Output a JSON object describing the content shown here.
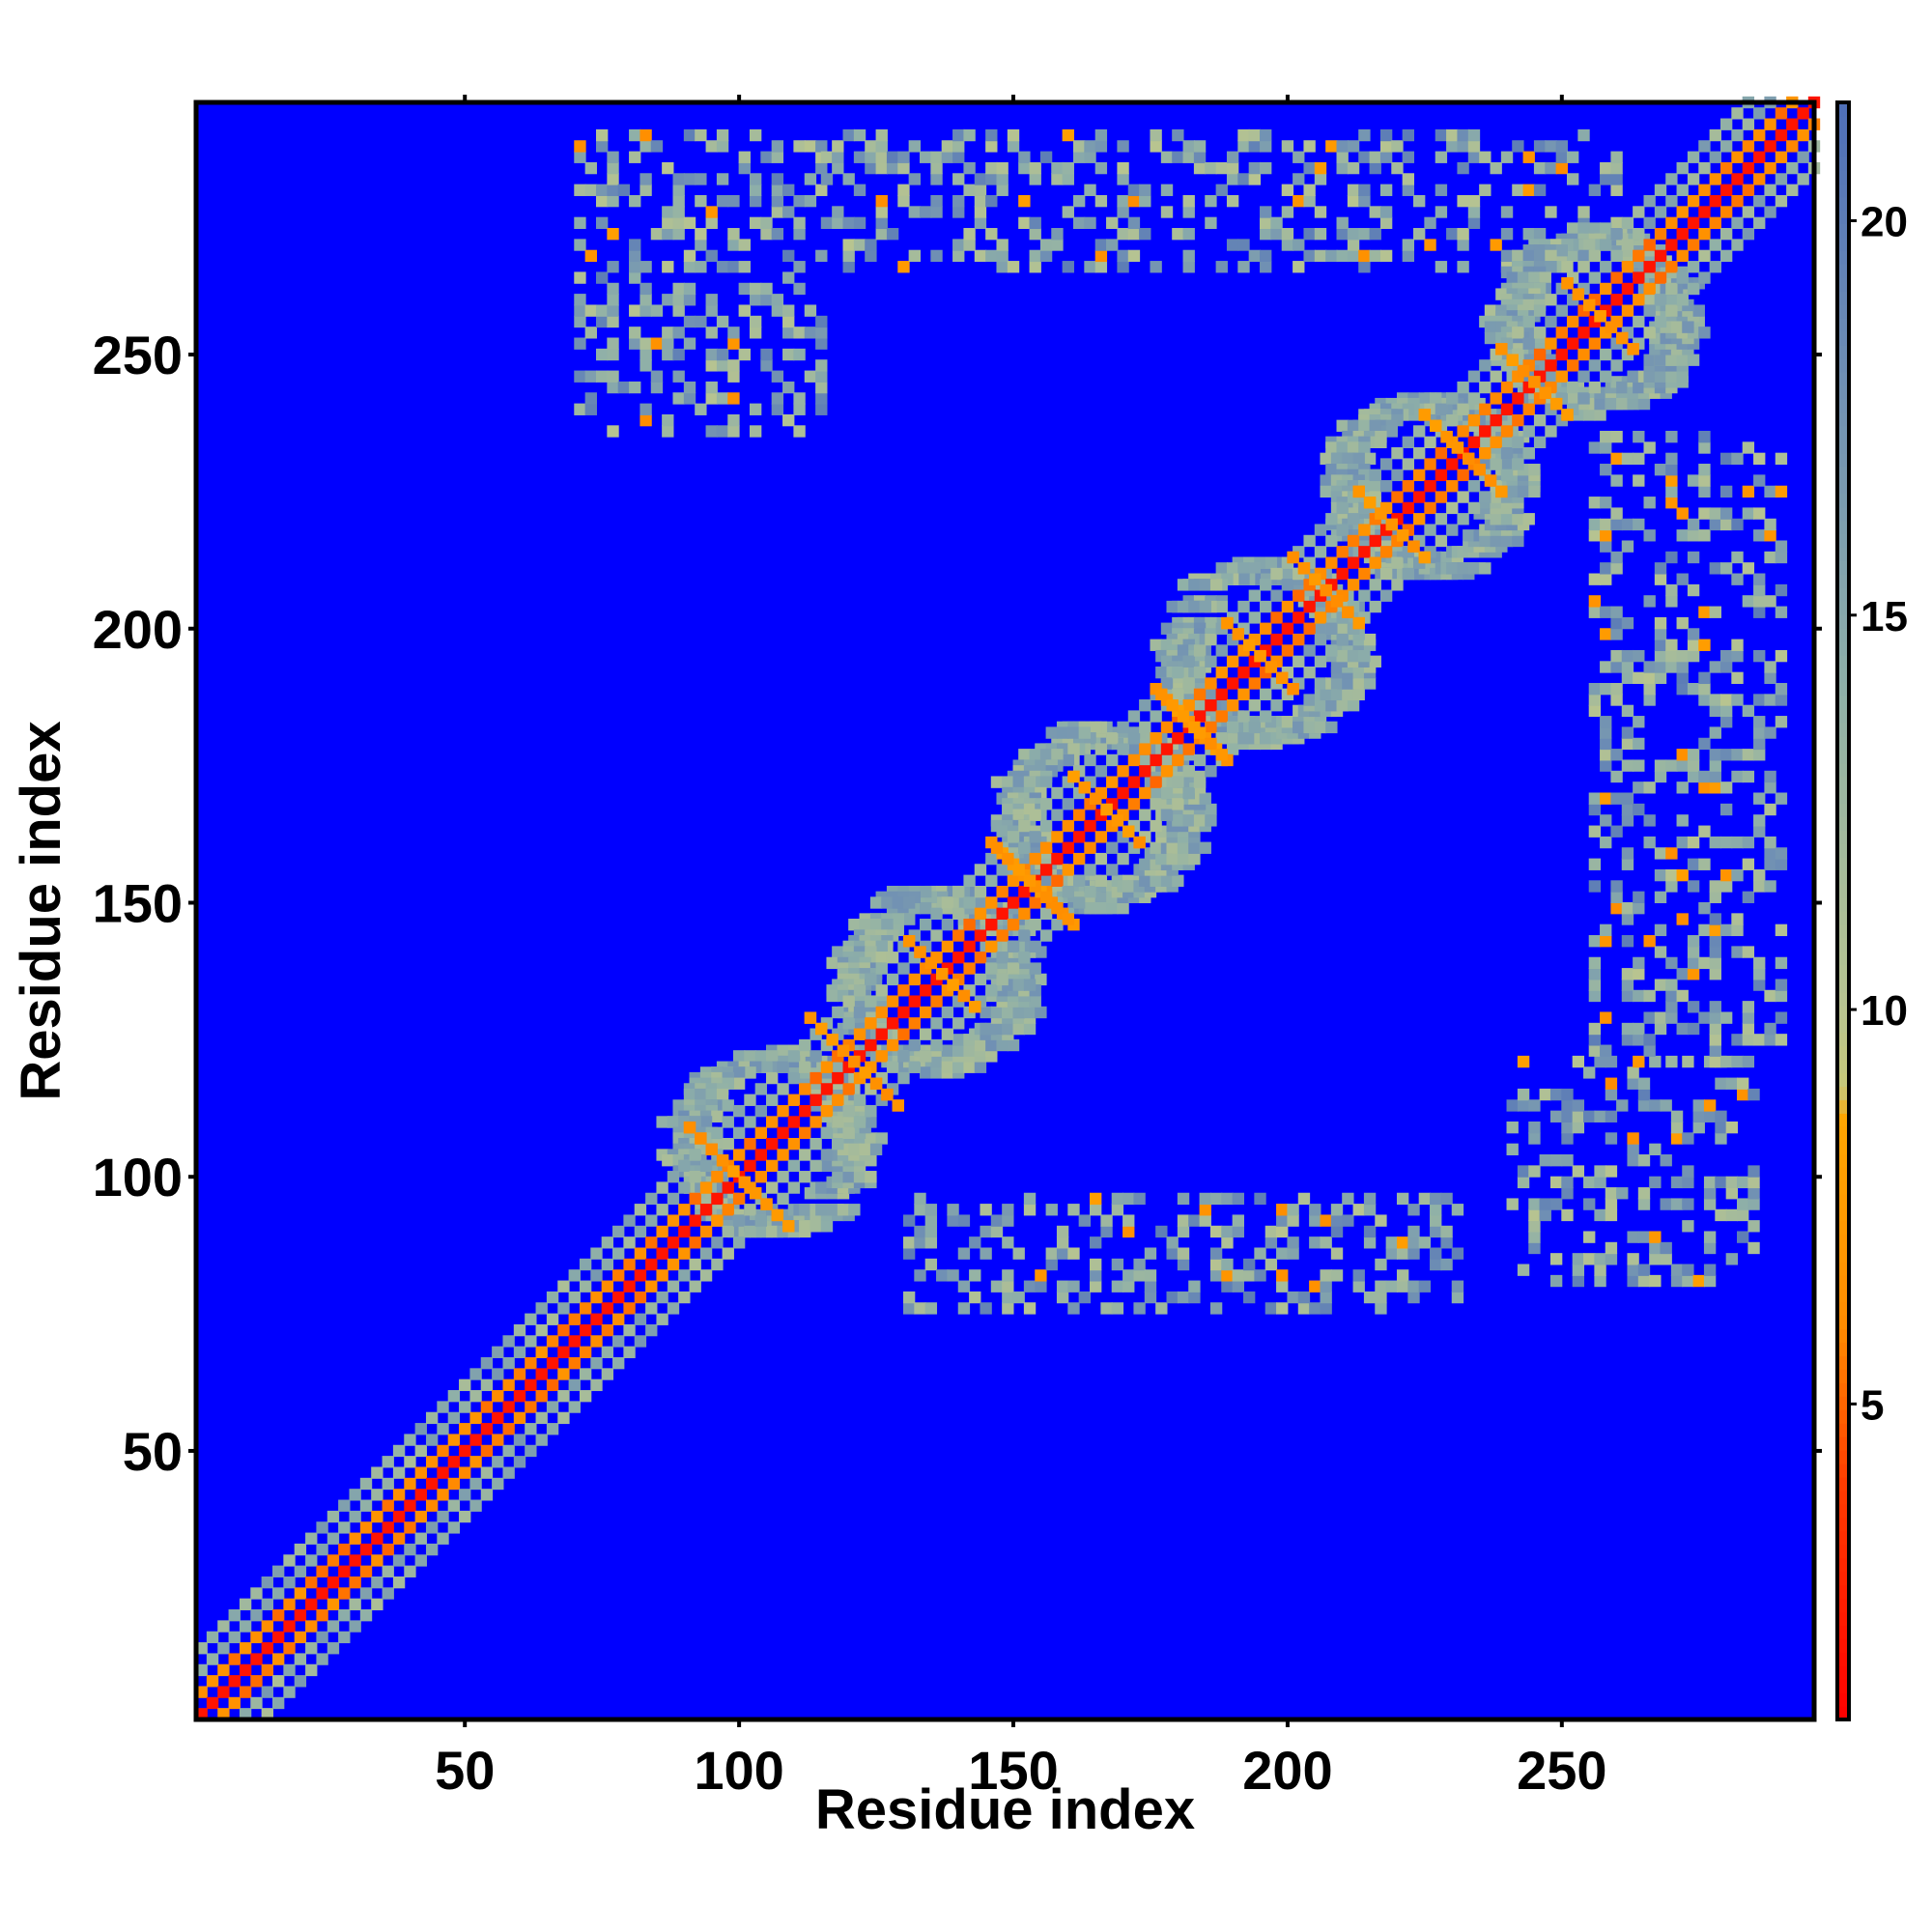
{
  "chart_data": {
    "type": "heatmap",
    "title": "",
    "xlabel": "Residue index",
    "ylabel": "Residue index",
    "xlim": [
      1,
      296
    ],
    "ylim": [
      1,
      296
    ],
    "x_ticks": [
      50,
      100,
      150,
      200,
      250
    ],
    "y_ticks": [
      50,
      100,
      150,
      200,
      250
    ],
    "colorbar": {
      "range": [
        1,
        21.5
      ],
      "ticks": [
        5,
        10,
        15,
        20
      ],
      "stops": [
        {
          "value": 1,
          "color": "#ff0000"
        },
        {
          "value": 4,
          "color": "#ff3c00"
        },
        {
          "value": 6,
          "color": "#ff8c00"
        },
        {
          "value": 8.6,
          "color": "#ffa500"
        },
        {
          "value": 9.0,
          "color": "#c8c878"
        },
        {
          "value": 10,
          "color": "#b8c490"
        },
        {
          "value": 14,
          "color": "#8fb0a8"
        },
        {
          "value": 18,
          "color": "#6f8fb4"
        },
        {
          "value": 21.5,
          "color": "#4f6fb8"
        }
      ],
      "background_color": "#0000ff"
    },
    "diagonal": {
      "from": 1,
      "to": 296,
      "value": 2
    },
    "near_diagonal_band_halfwidth": 6,
    "helix_crossings": [
      [
        90,
        108
      ],
      [
        112,
        128
      ],
      [
        130,
        142
      ],
      [
        145,
        160
      ],
      [
        160,
        172
      ],
      [
        175,
        188
      ],
      [
        188,
        200
      ],
      [
        200,
        212
      ],
      [
        212,
        224
      ],
      [
        224,
        238
      ],
      [
        238,
        250
      ],
      [
        250,
        262
      ]
    ],
    "ring_clusters": [
      {
        "x": [
          90,
          120
        ],
        "y": [
          90,
          120
        ]
      },
      {
        "x": [
          120,
          150
        ],
        "y": [
          120,
          150
        ]
      },
      {
        "x": [
          150,
          180
        ],
        "y": [
          150,
          180
        ]
      },
      {
        "x": [
          180,
          210
        ],
        "y": [
          180,
          210
        ]
      },
      {
        "x": [
          210,
          240
        ],
        "y": [
          210,
          240
        ]
      },
      {
        "x": [
          240,
          270
        ],
        "y": [
          240,
          270
        ]
      }
    ],
    "offdiagonal_blocks": [
      {
        "x": [
          70,
          115
        ],
        "y": [
          235,
          290
        ]
      },
      {
        "x": [
          115,
          260
        ],
        "y": [
          265,
          290
        ]
      },
      {
        "x": [
          240,
          285
        ],
        "y": [
          80,
          120
        ]
      },
      {
        "x": [
          255,
          290
        ],
        "y": [
          120,
          235
        ]
      },
      {
        "x": [
          130,
          230
        ],
        "y": [
          75,
          95
        ]
      }
    ]
  },
  "axes": {
    "x_title": "Residue index",
    "y_title": "Residue index"
  }
}
